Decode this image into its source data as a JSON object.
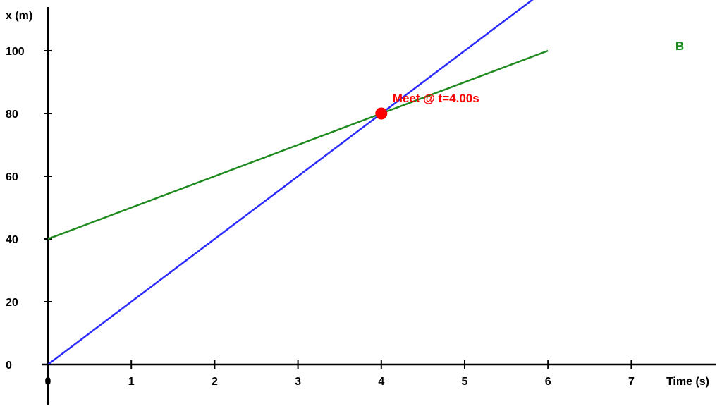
{
  "chart_data": {
    "type": "line",
    "xlabel": "Time (s)",
    "ylabel": "x (m)",
    "xlim": [
      0,
      8
    ],
    "ylim": [
      0,
      110
    ],
    "x_ticks": [
      0,
      1,
      2,
      3,
      4,
      5,
      6,
      7
    ],
    "y_ticks": [
      0,
      20,
      40,
      60,
      80,
      100
    ],
    "grid": false,
    "series": [
      {
        "color": "#2b2bff",
        "x": [
          0,
          6
        ],
        "y": [
          0,
          120
        ]
      },
      {
        "name": "B",
        "color": "#1e8a1e",
        "x": [
          0,
          6
        ],
        "y": [
          40,
          100
        ]
      }
    ],
    "annotation": {
      "text": "Meet @ t=4.00s",
      "x": 4.0,
      "y": 80,
      "color": "#ff0000"
    }
  }
}
